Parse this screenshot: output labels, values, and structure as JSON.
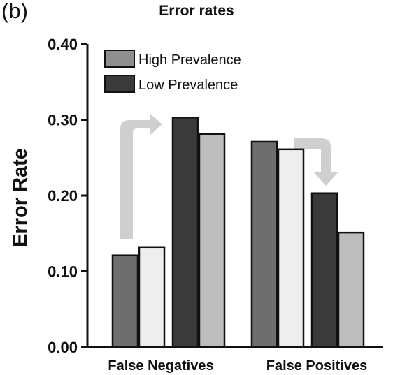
{
  "panel_label": "(b)",
  "chart_data": {
    "type": "bar",
    "title": "Error rates",
    "xlabel": "",
    "ylabel": "Error Rate",
    "ylim": [
      0,
      0.4
    ],
    "yticks": [
      0.0,
      0.1,
      0.2,
      0.3,
      0.4
    ],
    "ytick_labels": [
      "0.00",
      "0.10",
      "0.20",
      "0.30",
      "0.40"
    ],
    "categories": [
      "False Negatives",
      "False Positives"
    ],
    "grid": false,
    "legend_position": "top-left",
    "legend": [
      {
        "label": "High Prevalence",
        "color": "#8f8f8f"
      },
      {
        "label": "Low Prevalence",
        "color": "#3a3a3a"
      }
    ],
    "bars": [
      {
        "category": "False Negatives",
        "value": 0.121,
        "color": "#6e6e6e"
      },
      {
        "category": "False Negatives",
        "value": 0.132,
        "color": "#eeeeee"
      },
      {
        "category": "False Negatives",
        "value": 0.303,
        "color": "#3a3a3a"
      },
      {
        "category": "False Negatives",
        "value": 0.281,
        "color": "#bdbdbd"
      },
      {
        "category": "False Positives",
        "value": 0.271,
        "color": "#6e6e6e"
      },
      {
        "category": "False Positives",
        "value": 0.261,
        "color": "#eeeeee"
      },
      {
        "category": "False Positives",
        "value": 0.203,
        "color": "#3a3a3a"
      },
      {
        "category": "False Positives",
        "value": 0.151,
        "color": "#bdbdbd"
      }
    ],
    "annotations": [
      {
        "type": "arrow",
        "direction": "up-right",
        "category": "False Negatives",
        "color": "#cfcfcf"
      },
      {
        "type": "arrow",
        "direction": "right-down",
        "category": "False Positives",
        "color": "#cfcfcf"
      }
    ]
  }
}
